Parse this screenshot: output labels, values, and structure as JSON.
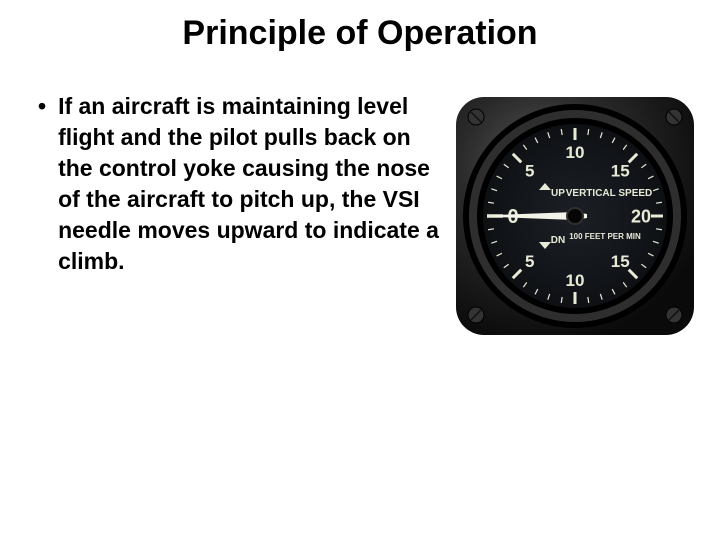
{
  "title": "Principle of Operation",
  "bullet": {
    "marker": "•",
    "text": "If an aircraft is maintaining level flight and the pilot pulls back on the control yoke causing the nose of the aircraft to pitch up, the VSI needle moves upward to indicate a climb."
  },
  "gauge": {
    "bezel_outer_color": "#1a1a1a",
    "bezel_highlight": "#4a4a4a",
    "face_color": "#111418",
    "tick_color": "#e8ead8",
    "text_color": "#e8ead8",
    "needle_color": "#f2f2e8",
    "label_up": "UP",
    "label_main": "VERTICAL SPEED",
    "label_dn": "DN",
    "label_units": "100 FEET PER MIN",
    "zero_label": "0",
    "majors": [
      {
        "value": "5",
        "angle_up": 135,
        "angle_dn": 225
      },
      {
        "value": "10",
        "angle_up": 90,
        "angle_dn": 270
      },
      {
        "value": "15",
        "angle_up": 45,
        "angle_dn": 315
      },
      {
        "value": "20",
        "angle_up": 0,
        "angle_dn": 360
      }
    ],
    "needle_angle_deg": 180
  }
}
